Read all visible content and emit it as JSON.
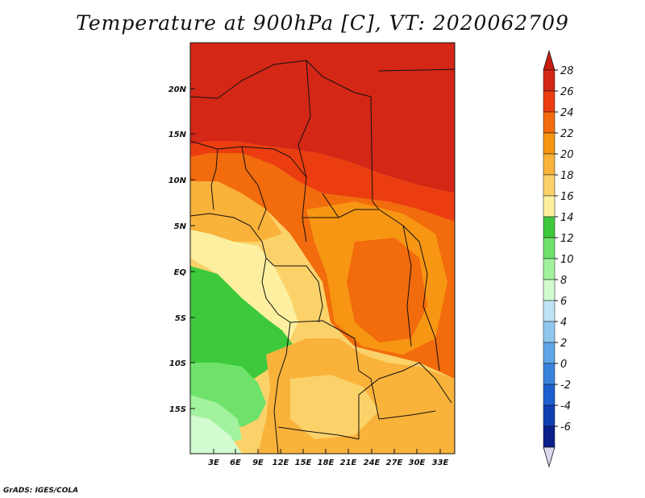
{
  "title": "Temperature at 900hPa [C], VT: 2020062709",
  "credit": "GrADS: IGES/COLA",
  "map": {
    "lat_labels": [
      "20N",
      "15N",
      "10N",
      "5N",
      "EQ",
      "5S",
      "10S",
      "15S"
    ],
    "lon_labels": [
      "3E",
      "6E",
      "9E",
      "12E",
      "15E",
      "18E",
      "21E",
      "24E",
      "27E",
      "30E",
      "33E"
    ]
  },
  "colorbar": {
    "labels": [
      "28",
      "26",
      "24",
      "22",
      "20",
      "18",
      "16",
      "14",
      "12",
      "10",
      "8",
      "6",
      "4",
      "2",
      "0",
      "-2",
      "-4",
      "-6"
    ],
    "colors": [
      "#d42716",
      "#eb3d10",
      "#f26b0c",
      "#f79612",
      "#f9b23a",
      "#fbd26a",
      "#fcf0a0",
      "#3ec93d",
      "#6ee26a",
      "#a3f29e",
      "#d2fbd0",
      "#bfe3f5",
      "#8fc7ef",
      "#5ea6e6",
      "#3a83dc",
      "#1d5fcf",
      "#0f3fb0",
      "#0a1f8a"
    ],
    "top_color": "#c81c12",
    "bottom_color": "#dcd8f0"
  }
}
